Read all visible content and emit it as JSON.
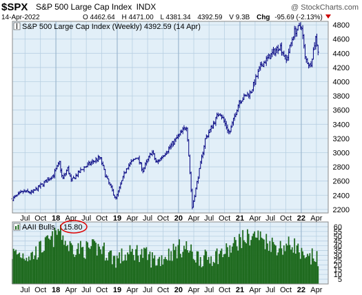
{
  "header": {
    "ticker": "$SPX",
    "name": "S&P 500 Large Cap Index",
    "exchange": "INDX",
    "watermark": "@ StockCharts.com",
    "date": "14-Apr-2022",
    "quote": {
      "open": "O 4462.64",
      "high": "H 4471.00",
      "low": "L 4381.34",
      "close": "4392.59",
      "volume": "V 9.3B",
      "chg_label": "Chg",
      "chg_value": "-95.69 (-2.13%)"
    }
  },
  "colors": {
    "background": "#ffffff",
    "panel_bg": "#e2eff8",
    "grid": "#b7cfe2",
    "price_bars": "#000080",
    "volume_bars": "#1f6b1f",
    "chg_arrow": "#cc0000",
    "circle": "#dd0000"
  },
  "chart_data": [
    {
      "type": "ohlc",
      "legend": "S&P 500 Large Cap Index (Weekly) 4392.59 (14 Apr)",
      "ylim": [
        2150,
        4850
      ],
      "y_ticks": [
        2200,
        2400,
        2600,
        2800,
        3000,
        3200,
        3400,
        3600,
        3800,
        4000,
        4200,
        4400,
        4600,
        4800
      ],
      "x_tick_labels": [
        "Jul",
        "Oct",
        "18",
        "Apr",
        "Jul",
        "Oct",
        "19",
        "Apr",
        "Jul",
        "Oct",
        "20",
        "Apr",
        "Jul",
        "Oct",
        "21",
        "Apr",
        "Jul",
        "Oct",
        "22",
        "Apr"
      ],
      "year_labels": [
        "18",
        "19",
        "20",
        "21",
        "22"
      ],
      "x_tick_months": [
        "2017-07",
        "2017-10",
        "2018-01",
        "2018-04",
        "2018-07",
        "2018-10",
        "2019-01",
        "2019-04",
        "2019-07",
        "2019-10",
        "2020-01",
        "2020-04",
        "2020-07",
        "2020-10",
        "2021-01",
        "2021-04",
        "2021-07",
        "2021-10",
        "2022-01",
        "2022-04"
      ],
      "start": "2017-04-17",
      "end": "2022-04-14",
      "anchors": [
        [
          "2017-04-17",
          2350
        ],
        [
          "2017-06-19",
          2450
        ],
        [
          "2017-08-14",
          2440
        ],
        [
          "2017-10-16",
          2560
        ],
        [
          "2017-12-18",
          2690
        ],
        [
          "2018-01-22",
          2860
        ],
        [
          "2018-02-09",
          2620
        ],
        [
          "2018-03-12",
          2780
        ],
        [
          "2018-04-02",
          2600
        ],
        [
          "2018-06-11",
          2780
        ],
        [
          "2018-08-27",
          2900
        ],
        [
          "2018-09-21",
          2930
        ],
        [
          "2018-10-26",
          2660
        ],
        [
          "2018-12-24",
          2350
        ],
        [
          "2019-02-25",
          2790
        ],
        [
          "2019-04-29",
          2945
        ],
        [
          "2019-06-03",
          2750
        ],
        [
          "2019-07-26",
          3020
        ],
        [
          "2019-08-23",
          2850
        ],
        [
          "2019-10-28",
          3040
        ],
        [
          "2019-12-30",
          3230
        ],
        [
          "2020-02-19",
          3380
        ],
        [
          "2020-03-23",
          2230
        ],
        [
          "2020-06-08",
          3190
        ],
        [
          "2020-09-02",
          3580
        ],
        [
          "2020-10-30",
          3270
        ],
        [
          "2020-12-28",
          3730
        ],
        [
          "2021-03-05",
          3850
        ],
        [
          "2021-05-07",
          4230
        ],
        [
          "2021-08-27",
          4510
        ],
        [
          "2021-10-04",
          4300
        ],
        [
          "2021-11-19",
          4700
        ],
        [
          "2022-01-03",
          4790
        ],
        [
          "2022-01-24",
          4330
        ],
        [
          "2022-02-24",
          4220
        ],
        [
          "2022-03-29",
          4630
        ],
        [
          "2022-04-14",
          4392
        ]
      ]
    },
    {
      "type": "bar",
      "legend": "AAII Bulls",
      "legend_value": "15.80",
      "ylim": [
        0,
        65
      ],
      "y_ticks": [
        0,
        5,
        10,
        15,
        20,
        25,
        30,
        35,
        40,
        45,
        50,
        55,
        60
      ],
      "y_tick_labels": [
        "5",
        "10",
        "15",
        "20",
        "25",
        "30",
        "35",
        "40",
        "45",
        "50",
        "55",
        "60"
      ],
      "anchors": [
        [
          "2017-04-17",
          32
        ],
        [
          "2017-08-14",
          30
        ],
        [
          "2017-12-18",
          48
        ],
        [
          "2018-01-22",
          57
        ],
        [
          "2018-03-12",
          40
        ],
        [
          "2018-06-11",
          36
        ],
        [
          "2018-09-21",
          38
        ],
        [
          "2018-12-24",
          26
        ],
        [
          "2019-04-29",
          34
        ],
        [
          "2019-08-23",
          24
        ],
        [
          "2019-12-30",
          37
        ],
        [
          "2020-02-19",
          38
        ],
        [
          "2020-03-23",
          31
        ],
        [
          "2020-06-08",
          26
        ],
        [
          "2020-10-30",
          35
        ],
        [
          "2020-12-28",
          46
        ],
        [
          "2021-04-05",
          51
        ],
        [
          "2021-08-27",
          38
        ],
        [
          "2021-11-19",
          42
        ],
        [
          "2022-01-24",
          23
        ],
        [
          "2022-03-29",
          30
        ],
        [
          "2022-04-14",
          16
        ]
      ]
    }
  ]
}
